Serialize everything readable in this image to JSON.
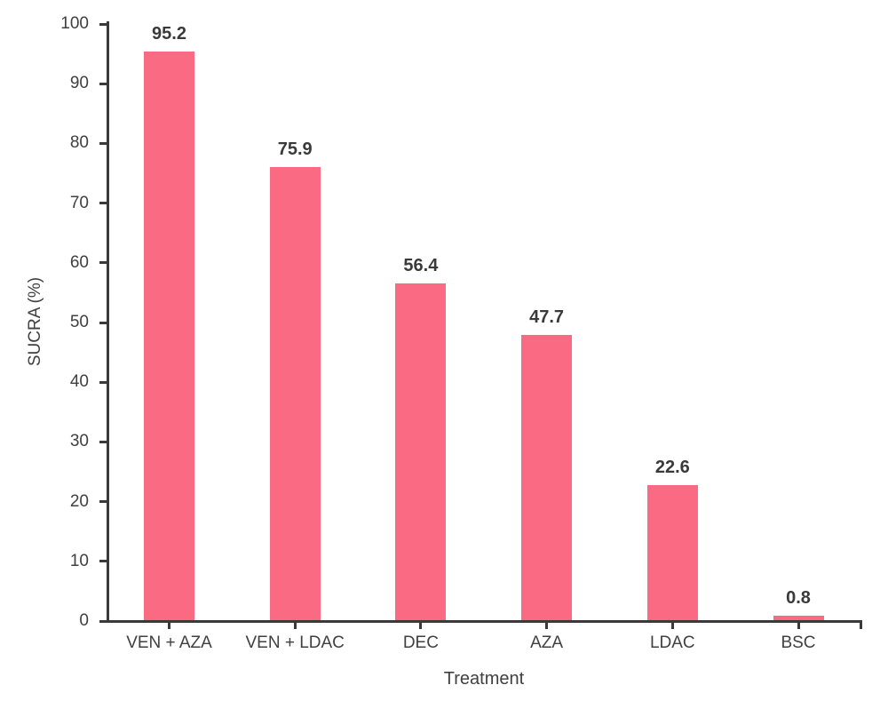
{
  "chart_data": {
    "type": "bar",
    "title": "",
    "xlabel": "Treatment",
    "ylabel": "SUCRA (%)",
    "categories": [
      "VEN + AZA",
      "VEN + LDAC",
      "DEC",
      "AZA",
      "LDAC",
      "BSC"
    ],
    "values": [
      95.2,
      75.9,
      56.4,
      47.7,
      22.6,
      0.8
    ],
    "value_labels": [
      "95.2",
      "75.9",
      "56.4",
      "47.7",
      "22.6",
      "0.8"
    ],
    "yticks": [
      0,
      10,
      20,
      30,
      40,
      50,
      60,
      70,
      80,
      90,
      100
    ],
    "ytick_labels": [
      "0",
      "10",
      "20",
      "30",
      "40",
      "50",
      "60",
      "70",
      "80",
      "90",
      "100"
    ],
    "ylim": [
      0,
      100
    ],
    "grid": false,
    "legend": "none",
    "colors": {
      "bar": "#FA6A82",
      "axis": "#3A3A3A",
      "tick_text": "#404040",
      "value_text": "#3A3A3A",
      "background": "#FFFFFF"
    }
  }
}
